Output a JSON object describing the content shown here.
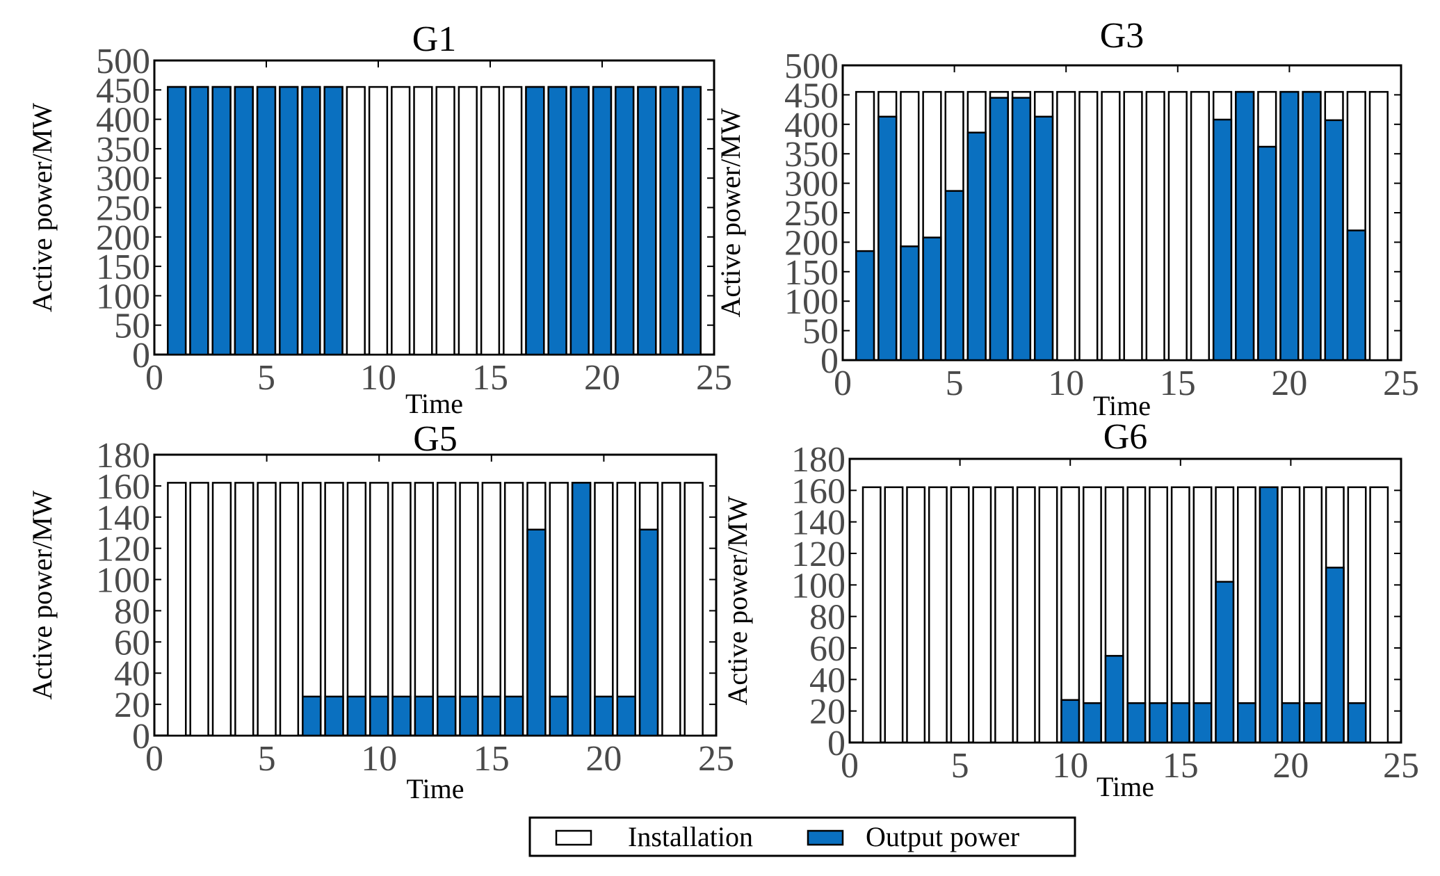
{
  "colors": {
    "installation": "#ffffff",
    "output": "#0a70c0",
    "stroke": "#000000",
    "tick": "#4a4a4a"
  },
  "legend": {
    "installation_label": "Installation",
    "output_label": "Output power"
  },
  "chart_data": [
    {
      "type": "bar",
      "title": "G1",
      "xlabel": "Time",
      "ylabel": "Active power/MW",
      "xlim": [
        0,
        25
      ],
      "ylim": [
        0,
        500
      ],
      "yticks": [
        0,
        50,
        100,
        150,
        200,
        250,
        300,
        350,
        400,
        450,
        500
      ],
      "xticks": [
        0,
        5,
        10,
        15,
        20,
        25
      ],
      "x": [
        1,
        2,
        3,
        4,
        5,
        6,
        7,
        8,
        9,
        10,
        11,
        12,
        13,
        14,
        15,
        16,
        17,
        18,
        19,
        20,
        21,
        22,
        23,
        24
      ],
      "series": [
        {
          "name": "Installation",
          "values": [
            455,
            455,
            455,
            455,
            455,
            455,
            455,
            455,
            455,
            455,
            455,
            455,
            455,
            455,
            455,
            455,
            455,
            455,
            455,
            455,
            455,
            455,
            455,
            455
          ]
        },
        {
          "name": "Output power",
          "values": [
            455,
            455,
            455,
            455,
            455,
            455,
            455,
            455,
            0,
            0,
            0,
            0,
            0,
            0,
            0,
            0,
            455,
            455,
            455,
            455,
            455,
            455,
            455,
            455
          ]
        }
      ]
    },
    {
      "type": "bar",
      "title": "G3",
      "xlabel": "Time",
      "ylabel": "Active power/MW",
      "xlim": [
        0,
        25
      ],
      "ylim": [
        0,
        500
      ],
      "yticks": [
        0,
        50,
        100,
        150,
        200,
        250,
        300,
        350,
        400,
        450,
        500
      ],
      "xticks": [
        0,
        5,
        10,
        15,
        20,
        25
      ],
      "x": [
        1,
        2,
        3,
        4,
        5,
        6,
        7,
        8,
        9,
        10,
        11,
        12,
        13,
        14,
        15,
        16,
        17,
        18,
        19,
        20,
        21,
        22,
        23,
        24
      ],
      "series": [
        {
          "name": "Installation",
          "values": [
            455,
            455,
            455,
            455,
            455,
            455,
            455,
            455,
            455,
            455,
            455,
            455,
            455,
            455,
            455,
            455,
            455,
            455,
            455,
            455,
            455,
            455,
            455,
            455
          ]
        },
        {
          "name": "Output power",
          "values": [
            185,
            413,
            193,
            208,
            287,
            386,
            445,
            445,
            413,
            0,
            0,
            0,
            0,
            0,
            0,
            0,
            408,
            455,
            362,
            455,
            455,
            407,
            220,
            0
          ]
        }
      ]
    },
    {
      "type": "bar",
      "title": "G5",
      "xlabel": "Time",
      "ylabel": "Active power/MW",
      "xlim": [
        0,
        25
      ],
      "ylim": [
        0,
        180
      ],
      "yticks": [
        0,
        20,
        40,
        60,
        80,
        100,
        120,
        140,
        160,
        180
      ],
      "xticks": [
        0,
        5,
        10,
        15,
        20,
        25
      ],
      "x": [
        1,
        2,
        3,
        4,
        5,
        6,
        7,
        8,
        9,
        10,
        11,
        12,
        13,
        14,
        15,
        16,
        17,
        18,
        19,
        20,
        21,
        22,
        23,
        24
      ],
      "series": [
        {
          "name": "Installation",
          "values": [
            162,
            162,
            162,
            162,
            162,
            162,
            162,
            162,
            162,
            162,
            162,
            162,
            162,
            162,
            162,
            162,
            162,
            162,
            162,
            162,
            162,
            162,
            162,
            162
          ]
        },
        {
          "name": "Output power",
          "values": [
            0,
            0,
            0,
            0,
            0,
            0,
            25,
            25,
            25,
            25,
            25,
            25,
            25,
            25,
            25,
            25,
            132,
            25,
            162,
            25,
            25,
            132,
            0,
            0
          ]
        }
      ]
    },
    {
      "type": "bar",
      "title": "G6",
      "xlabel": "Time",
      "ylabel": "Active power/MW",
      "xlim": [
        0,
        25
      ],
      "ylim": [
        0,
        180
      ],
      "yticks": [
        0,
        20,
        40,
        60,
        80,
        100,
        120,
        140,
        160,
        180
      ],
      "xticks": [
        0,
        5,
        10,
        15,
        20,
        25
      ],
      "x": [
        1,
        2,
        3,
        4,
        5,
        6,
        7,
        8,
        9,
        10,
        11,
        12,
        13,
        14,
        15,
        16,
        17,
        18,
        19,
        20,
        21,
        22,
        23,
        24
      ],
      "series": [
        {
          "name": "Installation",
          "values": [
            162,
            162,
            162,
            162,
            162,
            162,
            162,
            162,
            162,
            162,
            162,
            162,
            162,
            162,
            162,
            162,
            162,
            162,
            162,
            162,
            162,
            162,
            162,
            162
          ]
        },
        {
          "name": "Output power",
          "values": [
            0,
            0,
            0,
            0,
            0,
            0,
            0,
            0,
            0,
            27,
            25,
            55,
            25,
            25,
            25,
            25,
            102,
            25,
            162,
            25,
            25,
            111,
            25,
            0
          ]
        }
      ]
    }
  ]
}
